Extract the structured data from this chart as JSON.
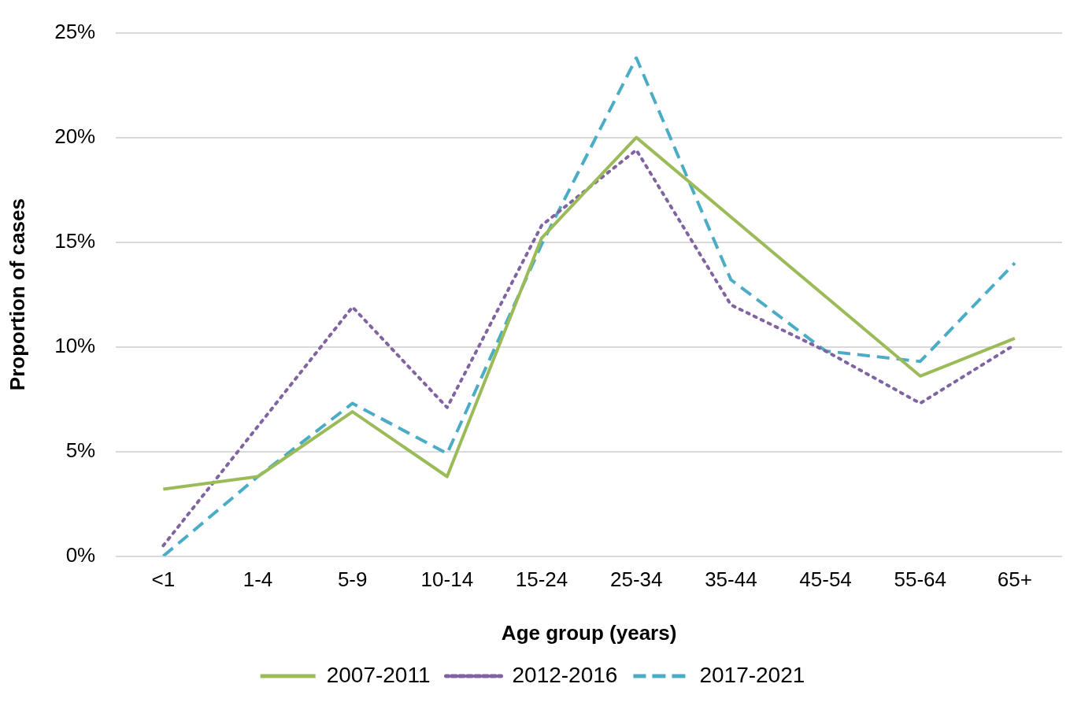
{
  "chart_data": {
    "type": "line",
    "xlabel": "Age group (years)",
    "ylabel": "Proportion of cases",
    "categories": [
      "<1",
      "1-4",
      "5-9",
      "10-14",
      "15-24",
      "25-34",
      "35-44",
      "45-54",
      "55-64",
      "65+"
    ],
    "series": [
      {
        "name": "2007-2011",
        "color": "#9bbb59",
        "line_style": "solid",
        "values": [
          3.2,
          3.8,
          6.9,
          3.8,
          15.2,
          20.0,
          16.2,
          12.4,
          8.6,
          10.4
        ]
      },
      {
        "name": "2012-2016",
        "color": "#8064a2",
        "line_style": "dotted",
        "values": [
          0.5,
          6.2,
          11.9,
          7.1,
          15.8,
          19.4,
          12.0,
          9.8,
          7.3,
          10.1
        ]
      },
      {
        "name": "2017-2021",
        "color": "#4bacc6",
        "line_style": "dashed",
        "values": [
          0,
          3.8,
          7.3,
          4.9,
          14.9,
          23.8,
          13.2,
          9.8,
          9.3,
          14.0
        ]
      }
    ],
    "ylim": [
      0,
      25
    ],
    "yticks": [
      {
        "value": 0,
        "label": "0%"
      },
      {
        "value": 5,
        "label": "5%"
      },
      {
        "value": 10,
        "label": "10%"
      },
      {
        "value": 15,
        "label": "15%"
      },
      {
        "value": 20,
        "label": "20%"
      },
      {
        "value": 25,
        "label": "25%"
      }
    ],
    "grid": "y",
    "legend": "bottom",
    "marker": "none"
  }
}
